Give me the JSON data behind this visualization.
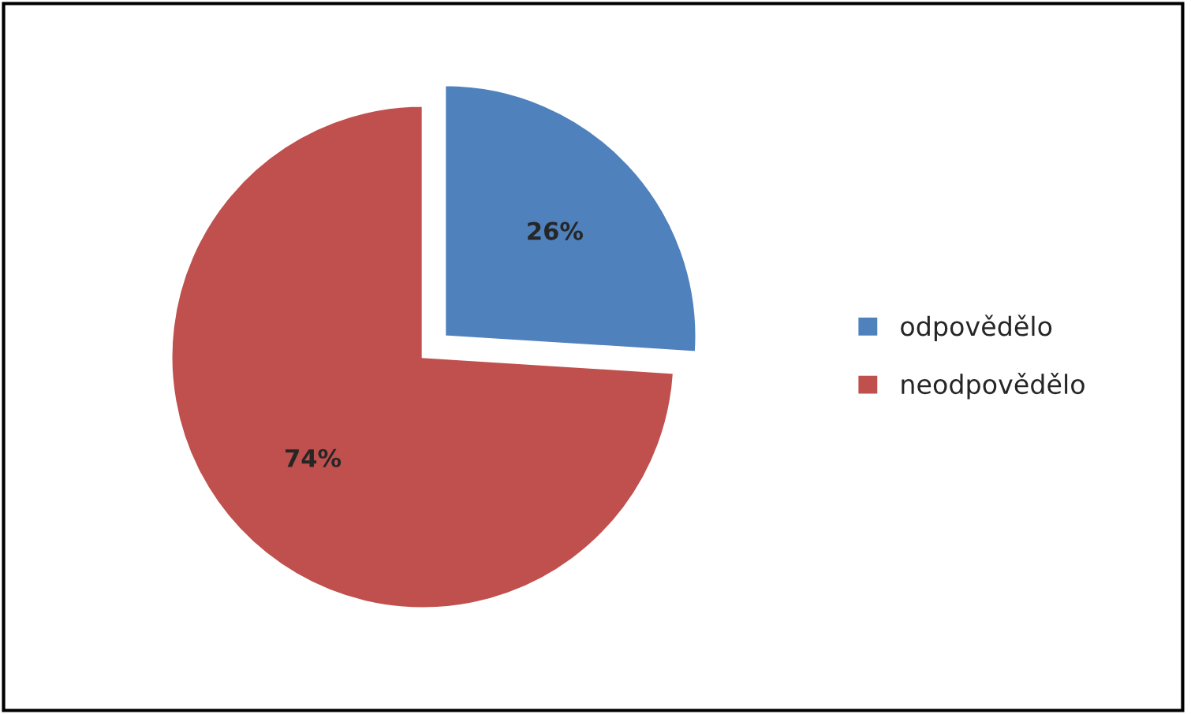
{
  "chart_data": {
    "type": "pie",
    "categories": [
      "odpovědělo",
      "neodpovědělo"
    ],
    "values": [
      26,
      74
    ],
    "colors": [
      "#4f81bd",
      "#c0504d"
    ],
    "value_labels": [
      "26%",
      "74%"
    ],
    "legend": "right"
  }
}
